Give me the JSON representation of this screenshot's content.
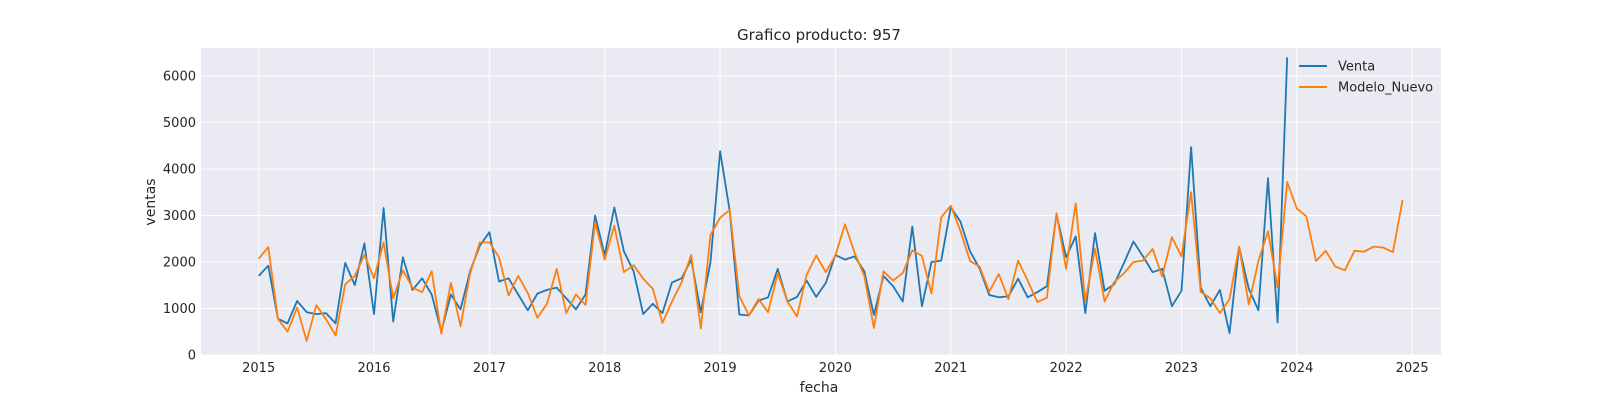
{
  "chart_data": {
    "type": "line",
    "title": "Grafico producto: 957",
    "xlabel": "fecha",
    "ylabel": "ventas",
    "x_ticks": [
      "2015",
      "2016",
      "2017",
      "2018",
      "2019",
      "2020",
      "2021",
      "2022",
      "2023",
      "2024",
      "2025"
    ],
    "y_ticks": [
      "0",
      "1000",
      "2000",
      "3000",
      "4000",
      "5000",
      "6000"
    ],
    "xlim": [
      "2014-07",
      "2025-04"
    ],
    "ylim": [
      0,
      6600
    ],
    "grid": true,
    "background": "#EAEAF2",
    "legend_position": "top-right",
    "series": [
      {
        "name": "Venta",
        "color": "#1f77b4",
        "start": "2015-01",
        "values": [
          1700,
          1920,
          780,
          680,
          1160,
          920,
          880,
          900,
          680,
          1980,
          1500,
          2400,
          880,
          3160,
          720,
          2100,
          1400,
          1650,
          1300,
          500,
          1300,
          980,
          1800,
          2350,
          2640,
          1580,
          1650,
          1300,
          960,
          1320,
          1400,
          1450,
          1220,
          980,
          1300,
          3000,
          2150,
          3170,
          2230,
          1800,
          880,
          1100,
          900,
          1560,
          1650,
          2050,
          920,
          2000,
          4380,
          3100,
          870,
          850,
          1170,
          1240,
          1850,
          1150,
          1250,
          1600,
          1250,
          1550,
          2150,
          2050,
          2120,
          1800,
          860,
          1700,
          1480,
          1150,
          2760,
          1050,
          2000,
          2030,
          3170,
          2870,
          2230,
          1860,
          1290,
          1240,
          1260,
          1640,
          1240,
          1350,
          1480,
          3030,
          2100,
          2550,
          900,
          2620,
          1380,
          1520,
          1970,
          2440,
          2120,
          1780,
          1850,
          1050,
          1380,
          4470,
          1450,
          1050,
          1400,
          470,
          2320,
          1420,
          960,
          3800,
          700,
          6400
        ]
      },
      {
        "name": "Modelo_Nuevo",
        "color": "#ff7f0e",
        "start": "2015-01",
        "values": [
          2070,
          2320,
          780,
          500,
          1020,
          300,
          1070,
          770,
          420,
          1520,
          1700,
          2150,
          1650,
          2420,
          1220,
          1820,
          1450,
          1350,
          1800,
          460,
          1550,
          620,
          1750,
          2420,
          2420,
          2100,
          1280,
          1700,
          1330,
          800,
          1100,
          1850,
          900,
          1300,
          1080,
          2850,
          2050,
          2780,
          1780,
          1930,
          1640,
          1420,
          690,
          1150,
          1560,
          2150,
          570,
          2580,
          2950,
          3120,
          1270,
          850,
          1200,
          920,
          1760,
          1150,
          830,
          1720,
          2140,
          1780,
          2140,
          2810,
          2200,
          1700,
          580,
          1800,
          1600,
          1760,
          2250,
          2130,
          1320,
          2960,
          3210,
          2670,
          2020,
          1900,
          1360,
          1740,
          1200,
          2030,
          1600,
          1140,
          1230,
          3050,
          1850,
          3260,
          1150,
          2280,
          1150,
          1570,
          1750,
          2000,
          2030,
          2280,
          1690,
          2530,
          2120,
          3500,
          1360,
          1220,
          900,
          1200,
          2330,
          1090,
          2020,
          2660,
          1450,
          3720,
          3150,
          2980,
          2020,
          2240,
          1900,
          1820,
          2240,
          2220,
          2330,
          2310,
          2210,
          3330
        ]
      }
    ]
  }
}
